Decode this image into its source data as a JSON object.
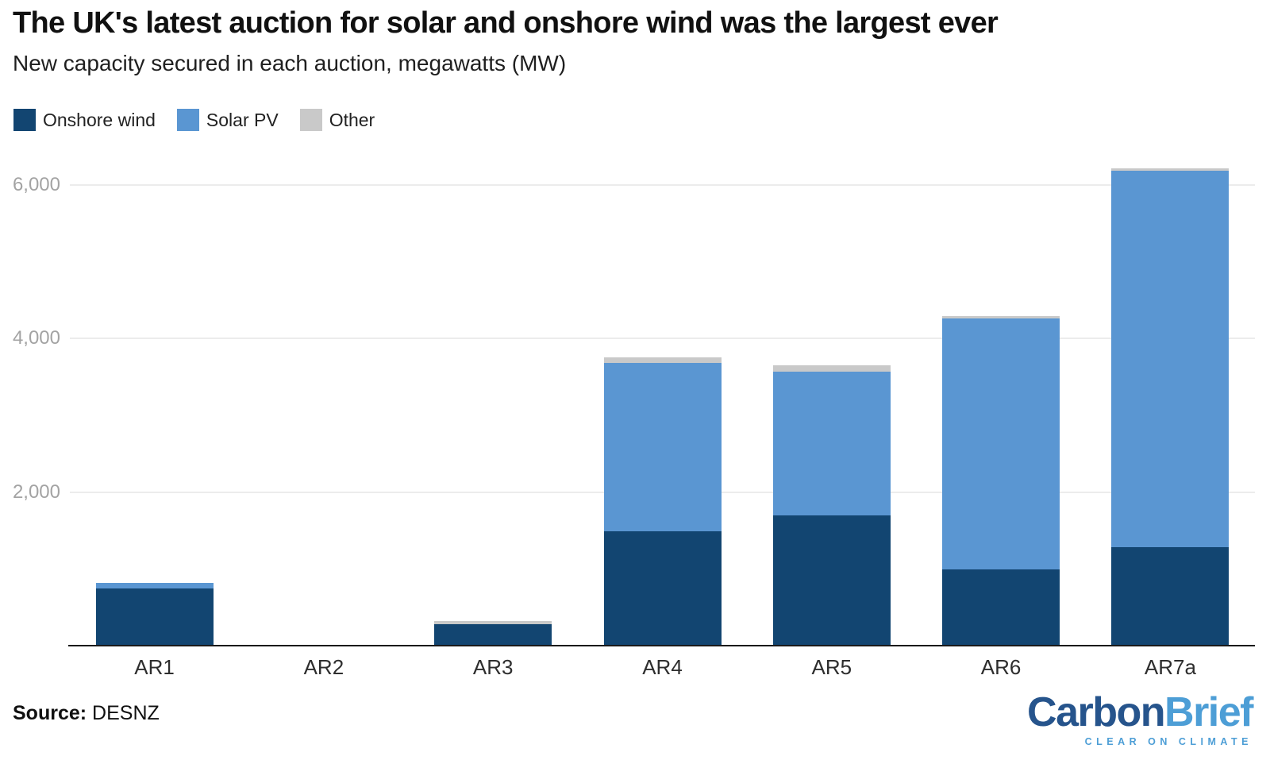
{
  "chart_data": {
    "type": "bar",
    "stacked": true,
    "units": "MW",
    "title": "The UK's latest auction for solar and onshore wind was the largest ever",
    "subtitle": "New capacity secured in each auction, megawatts (MW)",
    "categories": [
      "AR1",
      "AR2",
      "AR3",
      "AR4",
      "AR5",
      "AR6",
      "AR7a"
    ],
    "series": [
      {
        "name": "Onshore wind",
        "color": "#124571",
        "values": [
          749,
          0,
          275,
          1490,
          1700,
          990,
          1280
        ]
      },
      {
        "name": "Solar PV",
        "color": "#5a96d2",
        "values": [
          72,
          0,
          0,
          2190,
          1870,
          3270,
          4910
        ]
      },
      {
        "name": "Other",
        "color": "#c9c9c9",
        "values": [
          0,
          0,
          50,
          80,
          80,
          35,
          30
        ]
      }
    ],
    "ylabel": "",
    "xlabel": "",
    "yticks": [
      2000,
      4000,
      6000
    ],
    "ylim": [
      0,
      6400
    ],
    "grid": true,
    "legend_position": "top-left"
  },
  "colors": {
    "gridline": "#ececec",
    "axis_line": "#1a1a1a",
    "ytick_label": "#a3a3a3",
    "xtick_label": "#2e2e2e"
  },
  "footer": {
    "source_label": "Source:",
    "source_value": " DESNZ",
    "logo": {
      "part1": "Carbon",
      "part2": "Brief",
      "tagline": "CLEAR ON CLIMATE",
      "part1_color": "#26548c",
      "part2_color": "#4d9ed6",
      "tagline_color": "#4d9ed6"
    }
  }
}
